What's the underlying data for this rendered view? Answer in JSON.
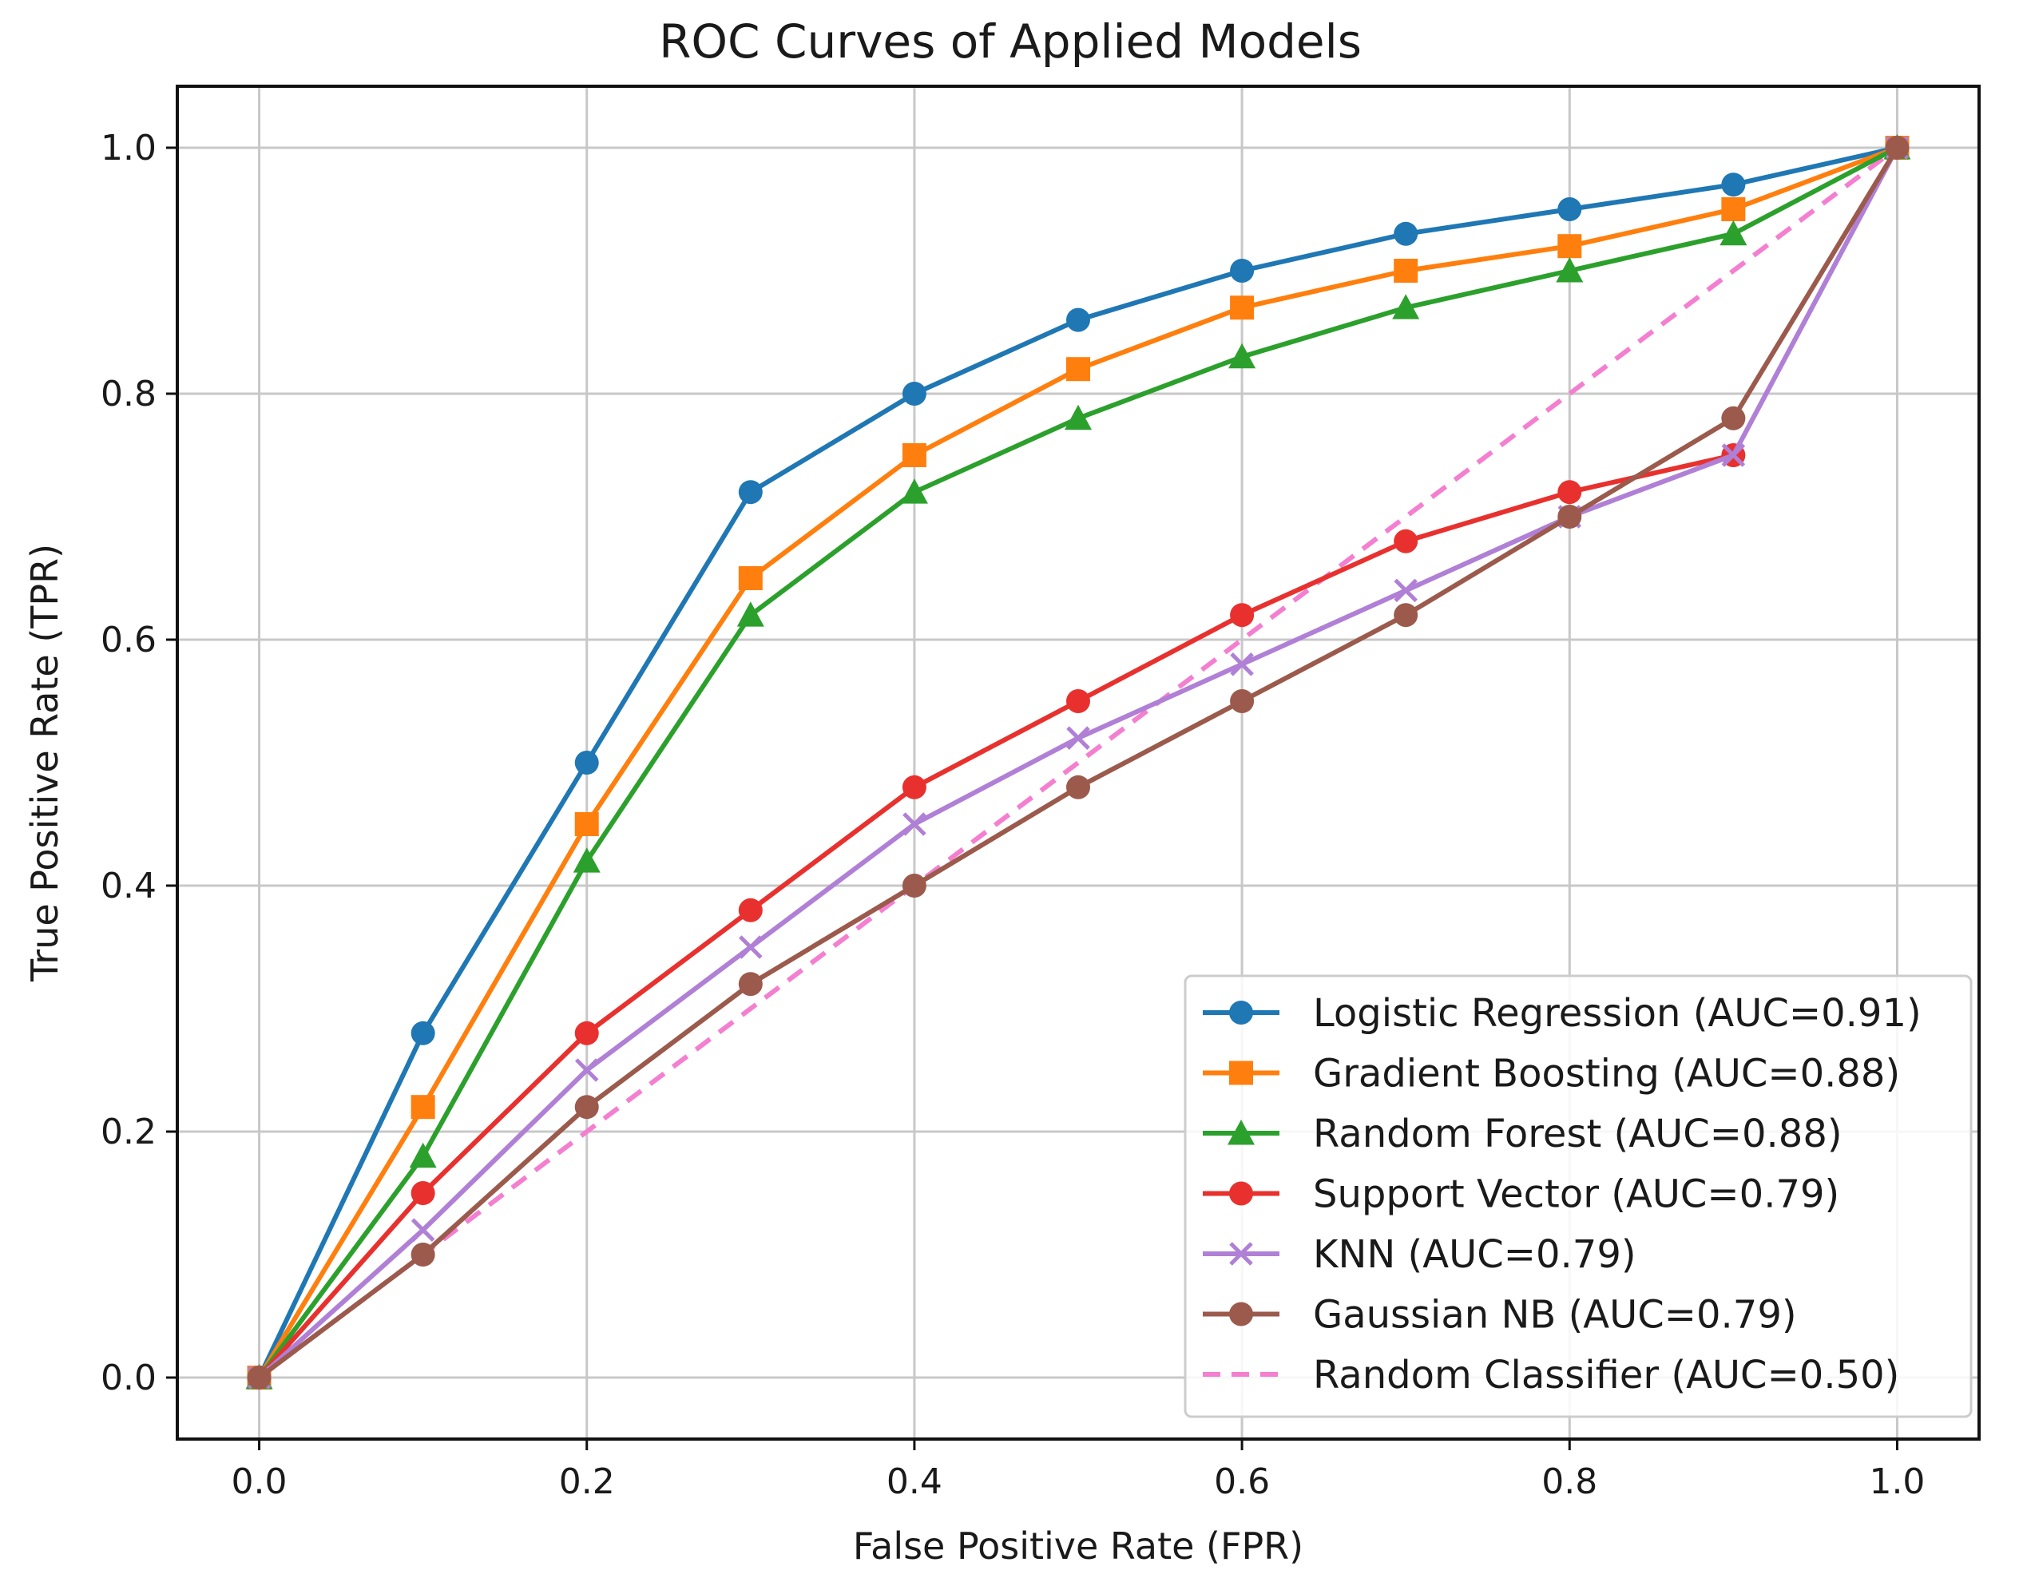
{
  "chart_data": {
    "type": "line",
    "title": "ROC Curves of Applied Models",
    "xlabel": "False Positive Rate (FPR)",
    "ylabel": "True Positive Rate (TPR)",
    "xlim": [
      -0.05,
      1.05
    ],
    "ylim": [
      -0.05,
      1.05
    ],
    "xticks": [
      0.0,
      0.2,
      0.4,
      0.6,
      0.8,
      1.0
    ],
    "yticks": [
      0.0,
      0.2,
      0.4,
      0.6,
      0.8,
      1.0
    ],
    "xtick_labels": [
      "0.0",
      "0.2",
      "0.4",
      "0.6",
      "0.8",
      "1.0"
    ],
    "ytick_labels": [
      "0.0",
      "0.2",
      "0.4",
      "0.6",
      "0.8",
      "1.0"
    ],
    "grid": true,
    "legend_position": "lower-right",
    "x": [
      0.0,
      0.1,
      0.2,
      0.3,
      0.4,
      0.5,
      0.6,
      0.7,
      0.8,
      0.9,
      1.0
    ],
    "series": [
      {
        "name": "Logistic Regression (AUC=0.91)",
        "color": "#1f77b4",
        "marker": "circle",
        "dash": "solid",
        "x": [
          0.0,
          0.1,
          0.2,
          0.3,
          0.4,
          0.5,
          0.6,
          0.7,
          0.8,
          0.9,
          1.0
        ],
        "values": [
          0.0,
          0.28,
          0.5,
          0.72,
          0.8,
          0.86,
          0.9,
          0.93,
          0.95,
          0.97,
          1.0
        ]
      },
      {
        "name": "Gradient Boosting (AUC=0.88)",
        "color": "#ff7f0e",
        "marker": "square",
        "dash": "solid",
        "x": [
          0.0,
          0.1,
          0.2,
          0.3,
          0.4,
          0.5,
          0.6,
          0.7,
          0.8,
          0.9,
          1.0
        ],
        "values": [
          0.0,
          0.22,
          0.45,
          0.65,
          0.75,
          0.82,
          0.87,
          0.9,
          0.92,
          0.95,
          1.0
        ]
      },
      {
        "name": "Random Forest (AUC=0.88)",
        "color": "#2ca02c",
        "marker": "triangle",
        "dash": "solid",
        "x": [
          0.0,
          0.1,
          0.2,
          0.3,
          0.4,
          0.5,
          0.6,
          0.7,
          0.8,
          0.9,
          1.0
        ],
        "values": [
          0.0,
          0.18,
          0.42,
          0.62,
          0.72,
          0.78,
          0.83,
          0.87,
          0.9,
          0.93,
          1.0
        ]
      },
      {
        "name": "Support Vector (AUC=0.79)",
        "color": "#e8312e",
        "marker": "circle",
        "dash": "solid",
        "x": [
          0.0,
          0.1,
          0.2,
          0.3,
          0.4,
          0.5,
          0.6,
          0.7,
          0.8,
          0.9
        ],
        "values": [
          0.0,
          0.15,
          0.28,
          0.38,
          0.48,
          0.55,
          0.62,
          0.68,
          0.72,
          0.75
        ]
      },
      {
        "name": "KNN (AUC=0.79)",
        "color": "#b07fd6",
        "marker": "x",
        "dash": "solid",
        "x": [
          0.0,
          0.1,
          0.2,
          0.3,
          0.4,
          0.5,
          0.6,
          0.7,
          0.8,
          0.9,
          1.0
        ],
        "values": [
          0.0,
          0.12,
          0.25,
          0.35,
          0.45,
          0.52,
          0.58,
          0.64,
          0.7,
          0.75,
          1.0
        ]
      },
      {
        "name": "Gaussian NB (AUC=0.79)",
        "color": "#9b5a4c",
        "marker": "circle",
        "dash": "solid",
        "x": [
          0.0,
          0.1,
          0.2,
          0.3,
          0.4,
          0.5,
          0.6,
          0.7,
          0.8,
          0.9,
          1.0
        ],
        "values": [
          0.0,
          0.1,
          0.22,
          0.32,
          0.4,
          0.48,
          0.55,
          0.62,
          0.7,
          0.78,
          1.0
        ]
      },
      {
        "name": "Random Classifier (AUC=0.50)",
        "color": "#f47fd0",
        "marker": "none",
        "dash": "dashed",
        "x": [
          0.0,
          1.0
        ],
        "values": [
          0.0,
          1.0
        ]
      }
    ]
  }
}
